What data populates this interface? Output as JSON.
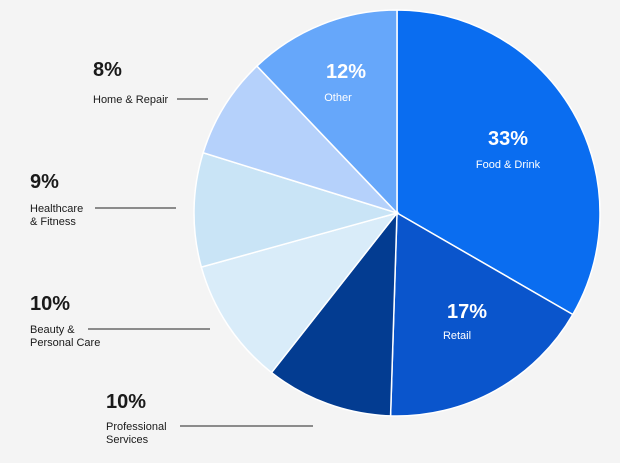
{
  "chart_data": {
    "type": "pie",
    "slices": [
      {
        "label": "Food & Drink",
        "lines": [
          "Food & Drink"
        ],
        "value": 33,
        "value_label": "33%",
        "color": "#0a6df0",
        "label_placement": "inside"
      },
      {
        "label": "Retail",
        "lines": [
          "Retail"
        ],
        "value": 17,
        "value_label": "17%",
        "color": "#0a55cc",
        "label_placement": "inside"
      },
      {
        "label": "Professional Services",
        "lines": [
          "Professional",
          "Services"
        ],
        "value": 10,
        "value_label": "10%",
        "color": "#033c91",
        "label_placement": "outside"
      },
      {
        "label": "Beauty & Personal Care",
        "lines": [
          "Beauty &",
          "Personal Care"
        ],
        "value": 10,
        "value_label": "10%",
        "color": "#d9ecf9",
        "label_placement": "outside"
      },
      {
        "label": "Healthcare & Fitness",
        "lines": [
          "Healthcare",
          "& Fitness"
        ],
        "value": 9,
        "value_label": "9%",
        "color": "#c9e4f6",
        "label_placement": "outside"
      },
      {
        "label": "Home & Repair",
        "lines": [
          "Home & Repair"
        ],
        "value": 8,
        "value_label": "8%",
        "color": "#b5d1fb",
        "label_placement": "outside"
      },
      {
        "label": "Other",
        "lines": [
          "Other"
        ],
        "value": 12,
        "value_label": "12%",
        "color": "#66a7fa",
        "label_placement": "inside"
      }
    ]
  }
}
